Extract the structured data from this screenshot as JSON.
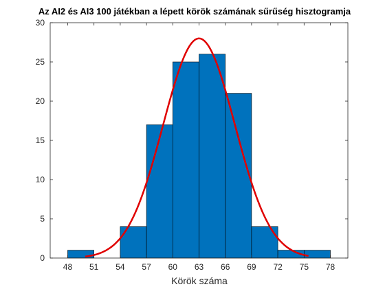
{
  "chart_data": {
    "type": "bar",
    "title": "Az AI2 és AI3 100 játékban a lépett körök számának sűrűség hisztogramja",
    "xlabel": "Körök száma",
    "ylabel": "",
    "xlim": [
      46,
      80
    ],
    "ylim": [
      0,
      30
    ],
    "x_ticks": [
      48,
      51,
      54,
      57,
      60,
      63,
      66,
      69,
      72,
      75,
      78
    ],
    "y_ticks": [
      0,
      5,
      10,
      15,
      20,
      25,
      30
    ],
    "x_tick_labels": [
      "48",
      "51",
      "54",
      "57",
      "60",
      "63",
      "66",
      "69",
      "72",
      "75",
      "78"
    ],
    "y_tick_labels": [
      "0",
      "5",
      "10",
      "15",
      "20",
      "25",
      "30"
    ],
    "bin_edges": [
      48,
      51,
      54,
      57,
      60,
      63,
      66,
      69,
      72,
      75,
      78
    ],
    "values": [
      1,
      0,
      4,
      17,
      25,
      26,
      21,
      4,
      1,
      1
    ],
    "fit_curve": {
      "type": "normal",
      "mean": 63,
      "sd": 4.1,
      "peak": 28,
      "x_range": [
        50,
        75.5
      ]
    },
    "colors": {
      "bar_fill": "#0072BD",
      "bar_edge": "#000000",
      "curve": "#E00000",
      "axis": "#262626"
    },
    "grid": false,
    "legend": "none"
  }
}
